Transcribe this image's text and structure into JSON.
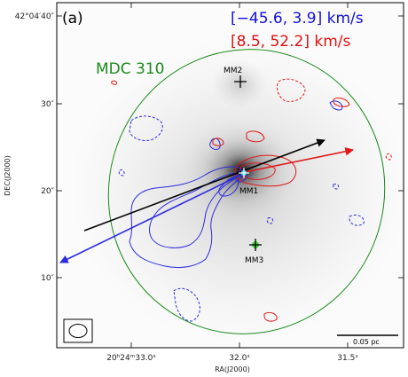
{
  "panel_label": "(a)",
  "velocity_blue": "[−45.6, 3.9] km/s",
  "velocity_red": "[8.5, 52.2] km/s",
  "core_label": "MDC 310",
  "sources": [
    {
      "name": "MM1"
    },
    {
      "name": "MM2"
    },
    {
      "name": "MM3"
    }
  ],
  "scale_bar": "0.05 pc",
  "x_axis": {
    "label": "RA(J2000)",
    "ticks": [
      {
        "h": "20",
        "m": "24",
        "s": "33.0",
        "text": "20ʰ24ᵐ33.0ˢ"
      },
      {
        "text": "32.0ˢ"
      },
      {
        "text": "31.5ˢ"
      }
    ]
  },
  "y_axis": {
    "label": "DEC(J2000)",
    "ticks": [
      {
        "text": "42°04′40″"
      },
      {
        "text": "30″"
      },
      {
        "text": "20″"
      },
      {
        "text": "10″"
      }
    ]
  },
  "colors": {
    "blue_contour": "#2a2ae0",
    "red_contour": "#e01818",
    "core_ellipse": "#1a8a1a",
    "blue_label": "#1010e0",
    "red_label": "#e01010",
    "core_label": "#1a8a1a",
    "black_arrow": "#000000",
    "mm3_marker": "#22cc22"
  }
}
